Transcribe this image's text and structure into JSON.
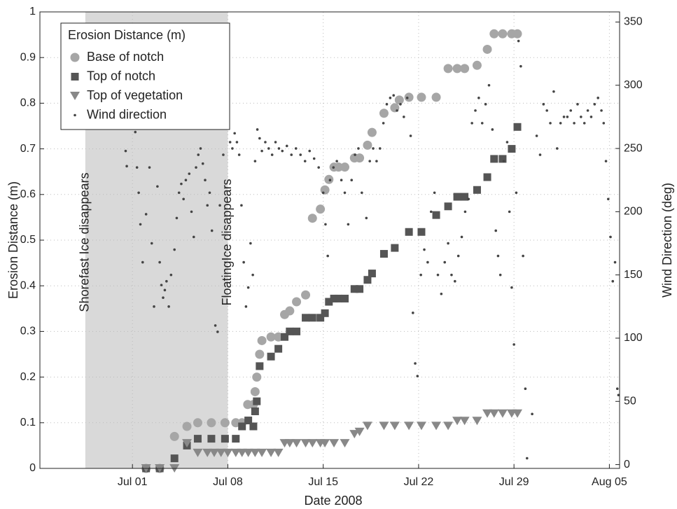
{
  "chart_data": {
    "type": "scatter",
    "x_label": "Date 2008",
    "y_label": "Erosion Distance (m)",
    "y2_label": "Wind Direction (deg)",
    "xlim": [
      "2008-06-24T05:00",
      "2008-08-05T18:00"
    ],
    "xticks": [
      {
        "value": "2008-07-01",
        "label": "Jul 01"
      },
      {
        "value": "2008-07-08",
        "label": "Jul 08"
      },
      {
        "value": "2008-07-15",
        "label": "Jul 15"
      },
      {
        "value": "2008-07-22",
        "label": "Jul 22"
      },
      {
        "value": "2008-07-29",
        "label": "Jul 29"
      },
      {
        "value": "2008-08-05",
        "label": "Aug 05"
      }
    ],
    "ylim": [
      0,
      1
    ],
    "yticks": [
      0,
      0.1,
      0.2,
      0.3,
      0.4,
      0.5,
      0.6,
      0.7,
      0.8,
      0.9,
      1
    ],
    "y2lim": [
      -3,
      358
    ],
    "y2ticks": [
      0,
      50,
      100,
      150,
      200,
      250,
      300,
      350
    ],
    "grid": true,
    "legend": "upper left",
    "legend_title": "Erosion Distance (m)",
    "shaded_span": [
      "2008-06-27T13:00",
      "2008-07-08T00:00"
    ],
    "shade_color": "#d9d9d9",
    "annotations": [
      {
        "text": "Shorefast Ice disappears",
        "x": "2008-06-27T13:00"
      },
      {
        "text": "FloatingIce disappears",
        "x": "2008-07-08T00:00"
      }
    ],
    "series": [
      {
        "name": "Base of notch",
        "color": "#a6a6a6",
        "marker": "circle",
        "x": [
          "2008-07-02T00:00",
          "2008-07-03T00:00",
          "2008-07-04T02:00",
          "2008-07-05T00:00",
          "2008-07-05T19:00",
          "2008-07-06T19:00",
          "2008-07-07T19:00",
          "2008-07-08T14:00",
          "2008-07-09T01:00",
          "2008-07-09T11:00",
          "2008-07-09T21:00",
          "2008-07-10T00:00",
          "2008-07-10T03:00",
          "2008-07-10T08:00",
          "2008-07-10T12:00",
          "2008-07-11T04:00",
          "2008-07-11T17:00",
          "2008-07-12T04:00",
          "2008-07-12T13:00",
          "2008-07-13T01:00",
          "2008-07-13T17:00",
          "2008-07-14T05:00",
          "2008-07-14T19:00",
          "2008-07-15T03:00",
          "2008-07-15T10:00",
          "2008-07-15T19:00",
          "2008-07-16T03:00",
          "2008-07-16T14:00",
          "2008-07-17T07:00",
          "2008-07-17T16:00",
          "2008-07-18T06:00",
          "2008-07-18T14:00",
          "2008-07-19T11:00",
          "2008-07-20T06:00",
          "2008-07-20T14:00",
          "2008-07-21T07:00",
          "2008-07-22T05:00",
          "2008-07-23T07:00",
          "2008-07-24T04:00",
          "2008-07-24T20:00",
          "2008-07-25T09:00",
          "2008-07-26T07:00",
          "2008-07-27T01:00",
          "2008-07-27T13:00",
          "2008-07-28T04:00",
          "2008-07-28T20:00",
          "2008-07-29T06:00"
        ],
        "values": [
          0,
          0,
          0.07,
          0.092,
          0.1,
          0.1,
          0.1,
          0.1,
          0.1,
          0.14,
          0.14,
          0.168,
          0.2,
          0.25,
          0.28,
          0.288,
          0.288,
          0.337,
          0.345,
          0.365,
          0.38,
          0.548,
          0.568,
          0.61,
          0.633,
          0.66,
          0.66,
          0.66,
          0.68,
          0.68,
          0.708,
          0.736,
          0.778,
          0.79,
          0.807,
          0.813,
          0.813,
          0.813,
          0.876,
          0.876,
          0.876,
          0.883,
          0.918,
          0.952,
          0.952,
          0.952,
          0.952
        ]
      },
      {
        "name": "Top of notch",
        "color": "#555555",
        "marker": "square",
        "x": [
          "2008-07-02T00:00",
          "2008-07-03T00:00",
          "2008-07-04T02:00",
          "2008-07-05T00:00",
          "2008-07-05T19:00",
          "2008-07-06T19:00",
          "2008-07-07T19:00",
          "2008-07-08T14:00",
          "2008-07-09T01:00",
          "2008-07-09T12:00",
          "2008-07-09T21:00",
          "2008-07-10T00:00",
          "2008-07-10T03:00",
          "2008-07-10T08:00",
          "2008-07-11T04:00",
          "2008-07-11T17:00",
          "2008-07-12T04:00",
          "2008-07-12T13:00",
          "2008-07-13T01:00",
          "2008-07-13T17:00",
          "2008-07-14T05:00",
          "2008-07-14T19:00",
          "2008-07-15T03:00",
          "2008-07-15T10:00",
          "2008-07-15T19:00",
          "2008-07-16T03:00",
          "2008-07-16T14:00",
          "2008-07-17T07:00",
          "2008-07-17T16:00",
          "2008-07-18T06:00",
          "2008-07-18T14:00",
          "2008-07-19T11:00",
          "2008-07-20T06:00",
          "2008-07-21T07:00",
          "2008-07-22T05:00",
          "2008-07-23T07:00",
          "2008-07-24T04:00",
          "2008-07-24T20:00",
          "2008-07-25T09:00",
          "2008-07-26T07:00",
          "2008-07-27T01:00",
          "2008-07-27T13:00",
          "2008-07-28T04:00",
          "2008-07-28T20:00",
          "2008-07-29T06:00"
        ],
        "values": [
          0,
          0,
          0.022,
          0.05,
          0.065,
          0.065,
          0.065,
          0.065,
          0.092,
          0.105,
          0.092,
          0.125,
          0.147,
          0.224,
          0.245,
          0.262,
          0.288,
          0.3,
          0.3,
          0.33,
          0.33,
          0.33,
          0.34,
          0.365,
          0.372,
          0.372,
          0.372,
          0.393,
          0.393,
          0.413,
          0.427,
          0.47,
          0.483,
          0.518,
          0.518,
          0.555,
          0.574,
          0.595,
          0.595,
          0.61,
          0.638,
          0.678,
          0.678,
          0.7,
          0.748
        ]
      },
      {
        "name": "Top of vegetation",
        "color": "#888888",
        "marker": "triangle-down",
        "x": [
          "2008-07-02T00:00",
          "2008-07-03T00:00",
          "2008-07-04T02:00",
          "2008-07-05T00:00",
          "2008-07-05T19:00",
          "2008-07-06T12:00",
          "2008-07-07T00:00",
          "2008-07-07T12:00",
          "2008-07-08T00:00",
          "2008-07-08T14:00",
          "2008-07-09T01:00",
          "2008-07-09T12:00",
          "2008-07-10T00:00",
          "2008-07-10T12:00",
          "2008-07-11T04:00",
          "2008-07-11T17:00",
          "2008-07-12T04:00",
          "2008-07-12T13:00",
          "2008-07-13T01:00",
          "2008-07-13T17:00",
          "2008-07-14T05:00",
          "2008-07-14T19:00",
          "2008-07-15T03:00",
          "2008-07-15T19:00",
          "2008-07-16T14:00",
          "2008-07-17T07:00",
          "2008-07-17T16:00",
          "2008-07-18T06:00",
          "2008-07-19T11:00",
          "2008-07-20T06:00",
          "2008-07-21T07:00",
          "2008-07-22T05:00",
          "2008-07-23T07:00",
          "2008-07-24T04:00",
          "2008-07-24T20:00",
          "2008-07-25T09:00",
          "2008-07-26T07:00",
          "2008-07-27T01:00",
          "2008-07-27T13:00",
          "2008-07-28T04:00",
          "2008-07-28T20:00",
          "2008-07-29T06:00"
        ],
        "values": [
          0,
          0,
          0,
          0.055,
          0.034,
          0.034,
          0.034,
          0.034,
          0.034,
          0.034,
          0.034,
          0.034,
          0.034,
          0.034,
          0.034,
          0.034,
          0.055,
          0.055,
          0.055,
          0.055,
          0.055,
          0.055,
          0.055,
          0.055,
          0.055,
          0.075,
          0.08,
          0.093,
          0.093,
          0.093,
          0.093,
          0.093,
          0.093,
          0.093,
          0.104,
          0.104,
          0.104,
          0.12,
          0.12,
          0.12,
          0.12,
          0.12
        ]
      },
      {
        "name": "Wind direction",
        "color": "#444444",
        "marker": "dot",
        "axis": "y2",
        "x": [
          "2008-06-30T12:00",
          "2008-06-30T14:00",
          "2008-07-01T02:00",
          "2008-07-01T05:00",
          "2008-07-01T08:00",
          "2008-07-01T11:00",
          "2008-07-01T14:00",
          "2008-07-01T18:00",
          "2008-07-02T00:00",
          "2008-07-02T06:00",
          "2008-07-02T10:00",
          "2008-07-02T14:00",
          "2008-07-02T20:00",
          "2008-07-03T00:00",
          "2008-07-03T03:00",
          "2008-07-03T06:00",
          "2008-07-03T09:00",
          "2008-07-03T12:00",
          "2008-07-03T16:00",
          "2008-07-03T20:00",
          "2008-07-04T02:00",
          "2008-07-04T06:00",
          "2008-07-04T10:00",
          "2008-07-04T14:00",
          "2008-07-04T18:00",
          "2008-07-04T22:00",
          "2008-07-05T04:00",
          "2008-07-05T08:00",
          "2008-07-05T12:00",
          "2008-07-05T16:00",
          "2008-07-05T20:00",
          "2008-07-06T00:00",
          "2008-07-06T04:00",
          "2008-07-06T08:00",
          "2008-07-06T12:00",
          "2008-07-06T16:00",
          "2008-07-06T20:00",
          "2008-07-07T02:00",
          "2008-07-07T06:00",
          "2008-07-07T10:00",
          "2008-07-07T16:00",
          "2008-07-07T20:00",
          "2008-07-08T00:00",
          "2008-07-08T04:00",
          "2008-07-08T08:00",
          "2008-07-08T12:00",
          "2008-07-08T16:00",
          "2008-07-08T20:00",
          "2008-07-09T00:00",
          "2008-07-09T04:00",
          "2008-07-09T08:00",
          "2008-07-09T12:00",
          "2008-07-09T16:00",
          "2008-07-09T20:00",
          "2008-07-10T00:00",
          "2008-07-10T04:00",
          "2008-07-10T08:00",
          "2008-07-10T12:00",
          "2008-07-10T18:00",
          "2008-07-11T00:00",
          "2008-07-11T06:00",
          "2008-07-11T12:00",
          "2008-07-11T18:00",
          "2008-07-12T00:00",
          "2008-07-12T08:00",
          "2008-07-12T16:00",
          "2008-07-13T00:00",
          "2008-07-13T08:00",
          "2008-07-13T16:00",
          "2008-07-14T00:00",
          "2008-07-14T08:00",
          "2008-07-14T16:00",
          "2008-07-15T00:00",
          "2008-07-15T04:00",
          "2008-07-15T08:00",
          "2008-07-15T12:00",
          "2008-07-15T18:00",
          "2008-07-16T00:00",
          "2008-07-16T08:00",
          "2008-07-16T14:00",
          "2008-07-16T20:00",
          "2008-07-17T02:00",
          "2008-07-17T08:00",
          "2008-07-17T14:00",
          "2008-07-17T20:00",
          "2008-07-18T04:00",
          "2008-07-18T10:00",
          "2008-07-18T16:00",
          "2008-07-18T22:00",
          "2008-07-19T04:00",
          "2008-07-19T10:00",
          "2008-07-19T16:00",
          "2008-07-19T22:00",
          "2008-07-20T04:00",
          "2008-07-20T10:00",
          "2008-07-20T16:00",
          "2008-07-20T22:00",
          "2008-07-21T04:00",
          "2008-07-21T10:00",
          "2008-07-21T14:00",
          "2008-07-21T18:00",
          "2008-07-21T22:00",
          "2008-07-22T04:00",
          "2008-07-22T10:00",
          "2008-07-22T16:00",
          "2008-07-22T22:00",
          "2008-07-23T04:00",
          "2008-07-23T10:00",
          "2008-07-23T16:00",
          "2008-07-23T22:00",
          "2008-07-24T04:00",
          "2008-07-24T10:00",
          "2008-07-24T16:00",
          "2008-07-24T22:00",
          "2008-07-25T04:00",
          "2008-07-25T10:00",
          "2008-07-25T16:00",
          "2008-07-25T22:00",
          "2008-07-26T04:00",
          "2008-07-26T10:00",
          "2008-07-26T16:00",
          "2008-07-26T22:00",
          "2008-07-27T04:00",
          "2008-07-27T10:00",
          "2008-07-27T16:00",
          "2008-07-27T20:00",
          "2008-07-28T00:00",
          "2008-07-28T06:00",
          "2008-07-28T12:00",
          "2008-07-28T16:00",
          "2008-07-28T20:00",
          "2008-07-29T00:00",
          "2008-07-29T04:00",
          "2008-07-29T08:00",
          "2008-07-29T12:00",
          "2008-07-29T16:00",
          "2008-07-29T20:00",
          "2008-07-29T23:00",
          "2008-07-30T08:00",
          "2008-07-30T16:00",
          "2008-07-30T22:00",
          "2008-07-31T04:00",
          "2008-07-31T10:00",
          "2008-07-31T16:00",
          "2008-07-31T22:00",
          "2008-08-01T04:00",
          "2008-08-01T10:00",
          "2008-08-01T16:00",
          "2008-08-01T22:00",
          "2008-08-02T04:00",
          "2008-08-02T10:00",
          "2008-08-02T16:00",
          "2008-08-02T22:00",
          "2008-08-03T04:00",
          "2008-08-03T10:00",
          "2008-08-03T16:00",
          "2008-08-03T22:00",
          "2008-08-04T04:00",
          "2008-08-04T10:00",
          "2008-08-04T14:00",
          "2008-08-04T18:00",
          "2008-08-04T22:00",
          "2008-08-05T02:00",
          "2008-08-05T06:00",
          "2008-08-05T10:00",
          "2008-08-05T14:00",
          "2008-08-05T16:00"
        ],
        "values": [
          248,
          236,
          272,
          263,
          235,
          215,
          190,
          160,
          198,
          235,
          175,
          125,
          220,
          160,
          142,
          132,
          138,
          145,
          125,
          150,
          170,
          195,
          215,
          222,
          210,
          225,
          230,
          200,
          180,
          235,
          245,
          250,
          238,
          225,
          205,
          215,
          185,
          110,
          105,
          205,
          245,
          298,
          310,
          255,
          250,
          262,
          255,
          245,
          205,
          160,
          125,
          140,
          175,
          150,
          240,
          265,
          258,
          248,
          255,
          250,
          245,
          255,
          250,
          248,
          252,
          245,
          250,
          245,
          240,
          248,
          242,
          235,
          215,
          190,
          165,
          225,
          235,
          240,
          225,
          215,
          190,
          225,
          245,
          250,
          215,
          195,
          240,
          250,
          240,
          250,
          270,
          285,
          290,
          292,
          280,
          285,
          275,
          290,
          260,
          120,
          80,
          70,
          150,
          170,
          160,
          200,
          215,
          150,
          135,
          160,
          175,
          150,
          145,
          165,
          180,
          200,
          210,
          270,
          280,
          290,
          270,
          285,
          300,
          265,
          185,
          165,
          150,
          240,
          255,
          200,
          140,
          95,
          215,
          335,
          315,
          165,
          60,
          5,
          40,
          260,
          245,
          285,
          280,
          270,
          295,
          250,
          270,
          275,
          275,
          280,
          270,
          285,
          275,
          270,
          280,
          275,
          285,
          290,
          280,
          270,
          240,
          210,
          180,
          145,
          160,
          60,
          55
        ]
      }
    ]
  }
}
